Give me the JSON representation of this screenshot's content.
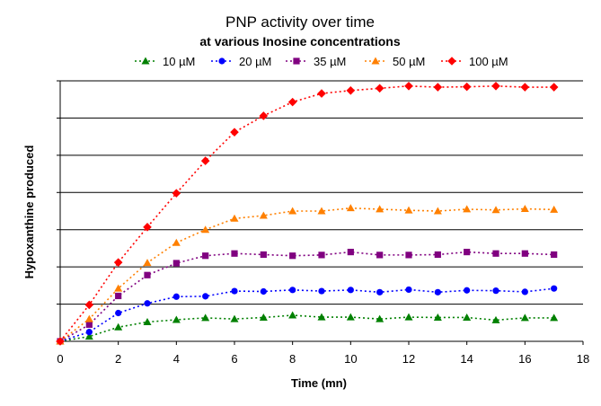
{
  "chart_data": {
    "type": "line",
    "title": "PNP activity over time",
    "subtitle": "at various Inosine concentrations",
    "xlabel": "Time (mn)",
    "ylabel": "Hypoxanthine produced",
    "xlim": [
      0,
      18
    ],
    "ylim": [
      0,
      7
    ],
    "x_ticks": [
      "0",
      "2",
      "4",
      "6",
      "8",
      "10",
      "12",
      "14",
      "16",
      "18"
    ],
    "y_tick_labels_shown": false,
    "grid": "horizontal",
    "legend_position": "top",
    "x": [
      0,
      1,
      2,
      3,
      4,
      5,
      6,
      7,
      8,
      9,
      10,
      11,
      12,
      13,
      14,
      15,
      16,
      17
    ],
    "series": [
      {
        "name": "10 µM",
        "color": "#008000",
        "marker": "triangle",
        "values": [
          0,
          0.13,
          0.38,
          0.52,
          0.58,
          0.63,
          0.6,
          0.64,
          0.7,
          0.65,
          0.65,
          0.6,
          0.65,
          0.64,
          0.64,
          0.57,
          0.63,
          0.63
        ]
      },
      {
        "name": "20 µM",
        "color": "#0000ff",
        "marker": "circle",
        "values": [
          0,
          0.25,
          0.76,
          1.02,
          1.2,
          1.21,
          1.35,
          1.34,
          1.38,
          1.35,
          1.38,
          1.32,
          1.39,
          1.32,
          1.37,
          1.36,
          1.33,
          1.42
        ]
      },
      {
        "name": "35 µM",
        "color": "#800080",
        "marker": "square",
        "values": [
          0,
          0.45,
          1.22,
          1.78,
          2.1,
          2.3,
          2.36,
          2.33,
          2.3,
          2.32,
          2.4,
          2.32,
          2.32,
          2.33,
          2.4,
          2.36,
          2.36,
          2.33
        ]
      },
      {
        "name": "50 µM",
        "color": "#ff8000",
        "marker": "triangle",
        "values": [
          0,
          0.6,
          1.42,
          2.11,
          2.65,
          3.0,
          3.3,
          3.38,
          3.5,
          3.5,
          3.58,
          3.55,
          3.52,
          3.5,
          3.55,
          3.53,
          3.56,
          3.54
        ]
      },
      {
        "name": "100 µM",
        "color": "#ff0000",
        "marker": "diamond",
        "values": [
          0,
          0.98,
          2.12,
          3.07,
          3.98,
          4.85,
          5.62,
          6.06,
          6.43,
          6.66,
          6.74,
          6.8,
          6.86,
          6.83,
          6.84,
          6.86,
          6.83,
          6.83
        ]
      }
    ]
  }
}
